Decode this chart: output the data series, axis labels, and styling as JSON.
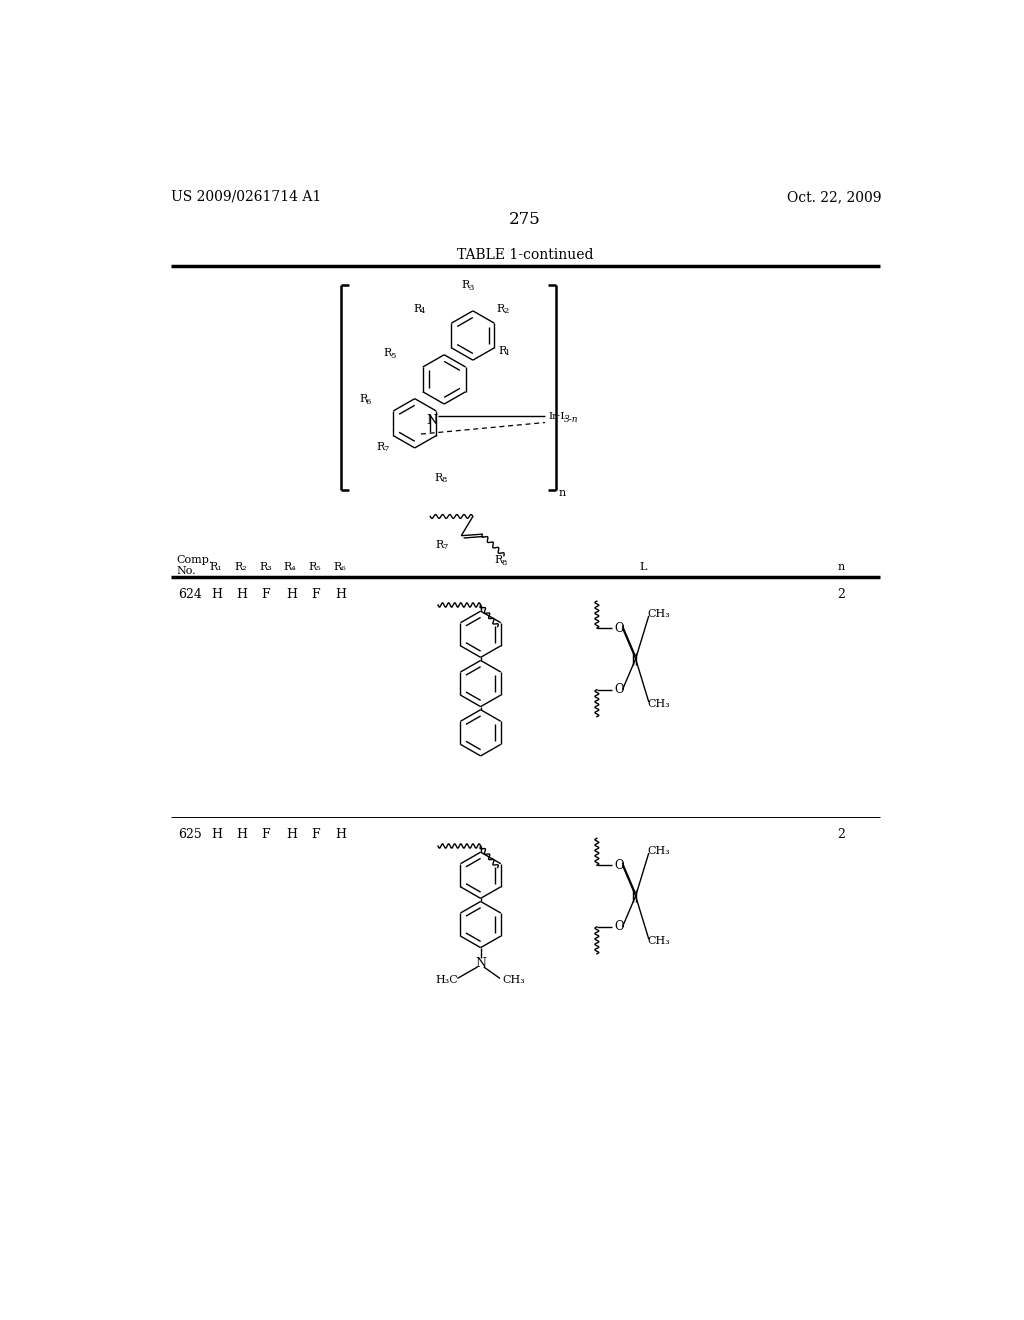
{
  "page_number": "275",
  "patent_left": "US 2009/0261714 A1",
  "patent_right": "Oct. 22, 2009",
  "table_title": "TABLE 1-continued",
  "background_color": "#ffffff",
  "rows": [
    {
      "comp": "624",
      "subs": [
        "H",
        "H",
        "F",
        "H",
        "F",
        "H"
      ],
      "n": "2"
    },
    {
      "comp": "625",
      "subs": [
        "H",
        "H",
        "F",
        "H",
        "F",
        "H"
      ],
      "n": "2"
    }
  ]
}
